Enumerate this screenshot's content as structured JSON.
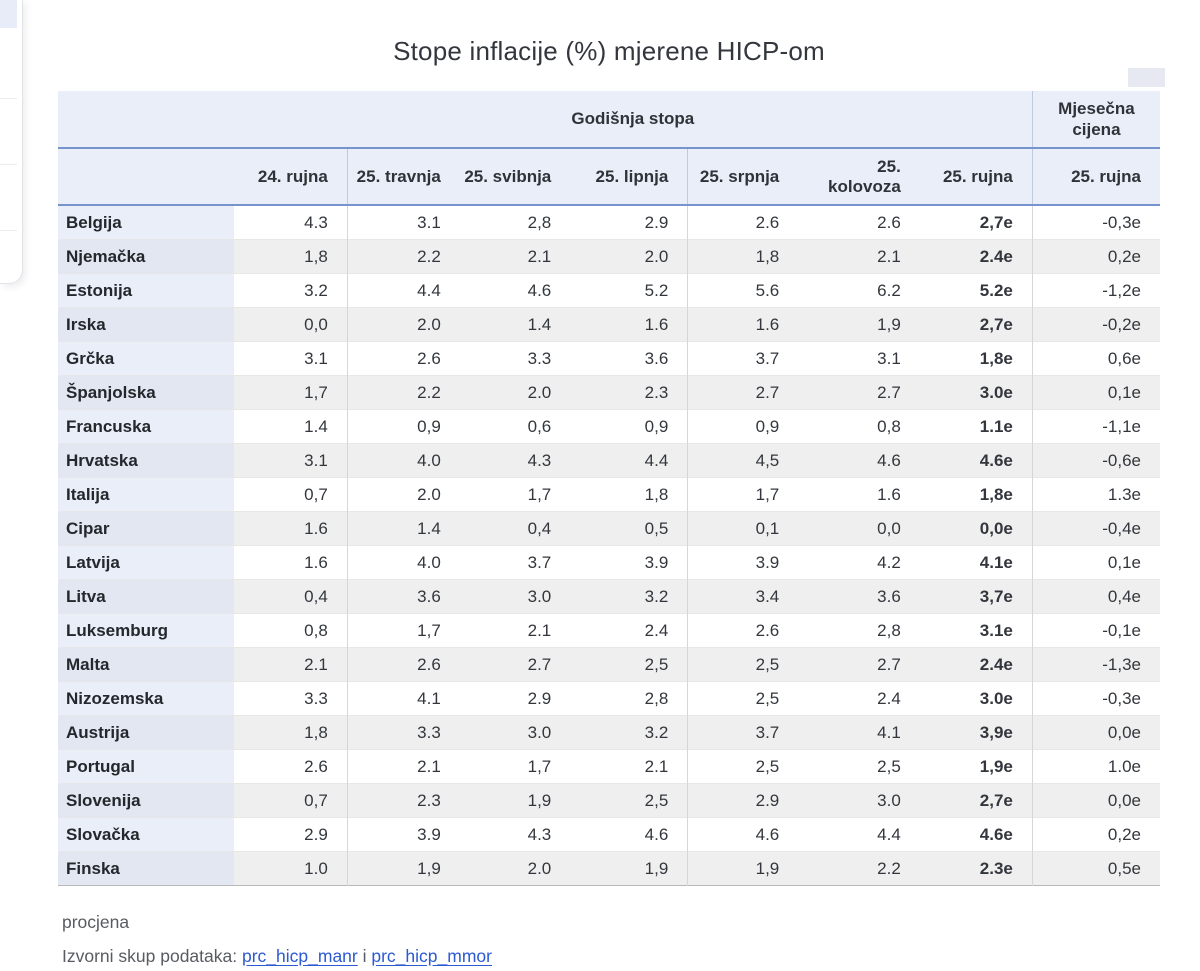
{
  "title": "Stope inflacije (%) mjerene HICP-om",
  "table": {
    "group_headers": {
      "annual": "Godišnja stopa",
      "monthly": "Mjesečna cijena"
    },
    "columns": [
      "24. rujna",
      "25. travnja",
      "25. svibnja",
      "25. lipnja",
      "25. srpnja",
      "25. kolovoza",
      "25. rujna",
      "25. rujna"
    ],
    "rows": [
      {
        "country": "Belgija",
        "values": [
          "4.3",
          "3.1",
          "2,8",
          "2.9",
          "2.6",
          "2.6"
        ],
        "estimate": "2,7e",
        "monthly": "-0,3e"
      },
      {
        "country": "Njemačka",
        "values": [
          "1,8",
          "2.2",
          "2.1",
          "2.0",
          "1,8",
          "2.1"
        ],
        "estimate": "2.4e",
        "monthly": "0,2e"
      },
      {
        "country": "Estonija",
        "values": [
          "3.2",
          "4.4",
          "4.6",
          "5.2",
          "5.6",
          "6.2"
        ],
        "estimate": "5.2e",
        "monthly": "-1,2e"
      },
      {
        "country": "Irska",
        "values": [
          "0,0",
          "2.0",
          "1.4",
          "1.6",
          "1.6",
          "1,9"
        ],
        "estimate": "2,7e",
        "monthly": "-0,2e"
      },
      {
        "country": "Grčka",
        "values": [
          "3.1",
          "2.6",
          "3.3",
          "3.6",
          "3.7",
          "3.1"
        ],
        "estimate": "1,8e",
        "monthly": "0,6e"
      },
      {
        "country": "Španjolska",
        "values": [
          "1,7",
          "2.2",
          "2.0",
          "2.3",
          "2.7",
          "2.7"
        ],
        "estimate": "3.0e",
        "monthly": "0,1e"
      },
      {
        "country": "Francuska",
        "values": [
          "1.4",
          "0,9",
          "0,6",
          "0,9",
          "0,9",
          "0,8"
        ],
        "estimate": "1.1e",
        "monthly": "-1,1e"
      },
      {
        "country": "Hrvatska",
        "values": [
          "3.1",
          "4.0",
          "4.3",
          "4.4",
          "4,5",
          "4.6"
        ],
        "estimate": "4.6e",
        "monthly": "-0,6e"
      },
      {
        "country": "Italija",
        "values": [
          "0,7",
          "2.0",
          "1,7",
          "1,8",
          "1,7",
          "1.6"
        ],
        "estimate": "1,8e",
        "monthly": "1.3e"
      },
      {
        "country": "Cipar",
        "values": [
          "1.6",
          "1.4",
          "0,4",
          "0,5",
          "0,1",
          "0,0"
        ],
        "estimate": "0,0e",
        "monthly": "-0,4e"
      },
      {
        "country": "Latvija",
        "values": [
          "1.6",
          "4.0",
          "3.7",
          "3.9",
          "3.9",
          "4.2"
        ],
        "estimate": "4.1e",
        "monthly": "0,1e"
      },
      {
        "country": "Litva",
        "values": [
          "0,4",
          "3.6",
          "3.0",
          "3.2",
          "3.4",
          "3.6"
        ],
        "estimate": "3,7e",
        "monthly": "0,4e"
      },
      {
        "country": "Luksemburg",
        "values": [
          "0,8",
          "1,7",
          "2.1",
          "2.4",
          "2.6",
          "2,8"
        ],
        "estimate": "3.1e",
        "monthly": "-0,1e"
      },
      {
        "country": "Malta",
        "values": [
          "2.1",
          "2.6",
          "2.7",
          "2,5",
          "2,5",
          "2.7"
        ],
        "estimate": "2.4e",
        "monthly": "-1,3e"
      },
      {
        "country": "Nizozemska",
        "values": [
          "3.3",
          "4.1",
          "2.9",
          "2,8",
          "2,5",
          "2.4"
        ],
        "estimate": "3.0e",
        "monthly": "-0,3e"
      },
      {
        "country": "Austrija",
        "values": [
          "1,8",
          "3.3",
          "3.0",
          "3.2",
          "3.7",
          "4.1"
        ],
        "estimate": "3,9e",
        "monthly": "0,0e"
      },
      {
        "country": "Portugal",
        "values": [
          "2.6",
          "2.1",
          "1,7",
          "2.1",
          "2,5",
          "2,5"
        ],
        "estimate": "1,9e",
        "monthly": "1.0e"
      },
      {
        "country": "Slovenija",
        "values": [
          "0,7",
          "2.3",
          "1,9",
          "2,5",
          "2.9",
          "3.0"
        ],
        "estimate": "2,7e",
        "monthly": "0,0e"
      },
      {
        "country": "Slovačka",
        "values": [
          "2.9",
          "3.9",
          "4.3",
          "4.6",
          "4.6",
          "4.4"
        ],
        "estimate": "4.6e",
        "monthly": "0,2e"
      },
      {
        "country": "Finska",
        "values": [
          "1.0",
          "1,9",
          "2.0",
          "1,9",
          "1,9",
          "2.2"
        ],
        "estimate": "2.3e",
        "monthly": "0,5e"
      }
    ]
  },
  "footer": {
    "note": "procjena",
    "source_label": "Izvorni skup podataka:",
    "link1": "prc_hicp_manr",
    "conjunction": "i",
    "link2": "prc_hicp_mmor"
  },
  "colors": {
    "header_bg": "#e9eef9",
    "row_stripe": "#efefef",
    "row_header_bg": "#e9eef9",
    "rule_blue": "#7793cc",
    "link_blue": "#2b5ad3",
    "text": "#33373d"
  }
}
